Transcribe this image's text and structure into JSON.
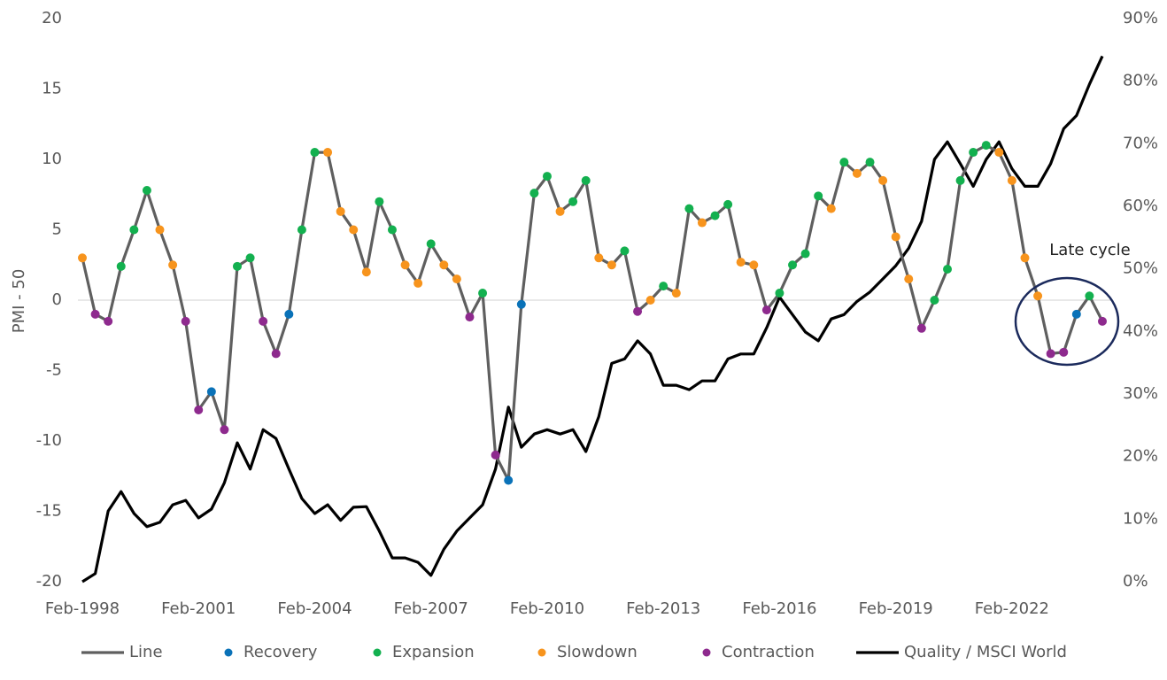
{
  "chart_data": {
    "type": "line",
    "y_label": "PMI - 50",
    "annotation": "Late cycle",
    "x": [
      1998.083,
      1998.417,
      1998.75,
      1999.083,
      1999.417,
      1999.75,
      2000.083,
      2000.417,
      2000.75,
      2001.083,
      2001.417,
      2001.75,
      2002.083,
      2002.417,
      2002.75,
      2003.083,
      2003.417,
      2003.75,
      2004.083,
      2004.417,
      2004.75,
      2005.083,
      2005.417,
      2005.75,
      2006.083,
      2006.417,
      2006.75,
      2007.083,
      2007.417,
      2007.75,
      2008.083,
      2008.417,
      2008.75,
      2009.083,
      2009.417,
      2009.75,
      2010.083,
      2010.417,
      2010.75,
      2011.083,
      2011.417,
      2011.75,
      2012.083,
      2012.417,
      2012.75,
      2013.083,
      2013.417,
      2013.75,
      2014.083,
      2014.417,
      2014.75,
      2015.083,
      2015.417,
      2015.75,
      2016.083,
      2016.417,
      2016.75,
      2017.083,
      2017.417,
      2017.75,
      2018.083,
      2018.417,
      2018.75,
      2019.083,
      2019.417,
      2019.75,
      2020.083,
      2020.417,
      2020.75,
      2021.083,
      2021.417,
      2021.75,
      2022.083,
      2022.417,
      2022.75,
      2023.083,
      2023.417,
      2023.75,
      2024.083,
      2024.417
    ],
    "xlim": [
      1998.083,
      2024.417
    ],
    "xticks": [
      {
        "value": 1998.083,
        "label": "Feb-1998"
      },
      {
        "value": 2001.083,
        "label": "Feb-2001"
      },
      {
        "value": 2004.083,
        "label": "Feb-2004"
      },
      {
        "value": 2007.083,
        "label": "Feb-2007"
      },
      {
        "value": 2010.083,
        "label": "Feb-2010"
      },
      {
        "value": 2013.083,
        "label": "Feb-2013"
      },
      {
        "value": 2016.083,
        "label": "Feb-2016"
      },
      {
        "value": 2019.083,
        "label": "Feb-2019"
      },
      {
        "value": 2022.083,
        "label": "Feb-2022"
      }
    ],
    "ylim": [
      -20,
      20
    ],
    "yticks": [
      -20,
      -15,
      -10,
      -5,
      0,
      5,
      10,
      15,
      20
    ],
    "y2lim": [
      0,
      90
    ],
    "y2ticks": [
      {
        "value": 0,
        "label": "0%"
      },
      {
        "value": 10,
        "label": "10%"
      },
      {
        "value": 20,
        "label": "20%"
      },
      {
        "value": 30,
        "label": "30%"
      },
      {
        "value": 40,
        "label": "40%"
      },
      {
        "value": 50,
        "label": "50%"
      },
      {
        "value": 60,
        "label": "60%"
      },
      {
        "value": 70,
        "label": "70%"
      },
      {
        "value": 80,
        "label": "80%"
      },
      {
        "value": 90,
        "label": "90%"
      }
    ],
    "series": [
      {
        "name": "Line",
        "type": "line",
        "color": "#5f5f5f",
        "values": [
          3,
          -1,
          -1.5,
          2.4,
          5,
          7.8,
          5,
          2.5,
          -1.5,
          -7.8,
          -6.5,
          -9.2,
          2.4,
          3,
          -1.5,
          -3.8,
          -1,
          5,
          10.5,
          10.5,
          6.3,
          5,
          2,
          7,
          5,
          2.5,
          1.2,
          4,
          2.5,
          1.5,
          -1.2,
          0.5,
          -11,
          -12.8,
          -0.3,
          7.6,
          8.8,
          6.3,
          7,
          8.5,
          3,
          2.5,
          3.5,
          -0.8,
          0,
          1,
          0.5,
          6.5,
          5.5,
          6,
          6.8,
          2.7,
          2.5,
          -0.7,
          0.5,
          2.5,
          3.3,
          7.4,
          6.5,
          9.8,
          9,
          9.8,
          8.5,
          4.5,
          1.5,
          -2,
          0,
          2.2,
          8.5,
          10.5,
          11,
          10.5,
          8.5,
          3,
          0.3,
          -3.8,
          -3.7,
          -1,
          0.3,
          -1.5
        ]
      },
      {
        "name": "Recovery",
        "type": "scatter",
        "color": "#0a72b8",
        "x": [
          2001.417,
          2003.417,
          2009.083,
          2009.417,
          2023.75
        ],
        "values": [
          -6.5,
          -1,
          -12.8,
          -0.3,
          -1
        ]
      },
      {
        "name": "Expansion",
        "type": "scatter",
        "color": "#13b04f",
        "x": [
          1999.083,
          1999.417,
          1999.75,
          2002.083,
          2002.417,
          2003.75,
          2004.083,
          2005.75,
          2006.083,
          2007.083,
          2008.417,
          2009.75,
          2010.083,
          2010.75,
          2011.083,
          2012.083,
          2013.083,
          2013.75,
          2014.417,
          2014.75,
          2016.083,
          2016.417,
          2016.75,
          2017.083,
          2017.75,
          2018.417,
          2020.083,
          2020.417,
          2020.75,
          2021.083,
          2021.417,
          2024.083
        ],
        "values": [
          2.4,
          5,
          7.8,
          2.4,
          3,
          5,
          10.5,
          7,
          5,
          4,
          0.5,
          7.6,
          8.8,
          7,
          8.5,
          3.5,
          1,
          6.5,
          6,
          6.8,
          0.5,
          2.5,
          3.3,
          7.4,
          9.8,
          9.8,
          0,
          2.2,
          8.5,
          10.5,
          11,
          0.3
        ]
      },
      {
        "name": "Slowdown",
        "type": "scatter",
        "color": "#f7941d",
        "x": [
          1998.083,
          2000.083,
          2000.417,
          2004.417,
          2004.75,
          2005.083,
          2005.417,
          2006.417,
          2006.75,
          2007.417,
          2007.75,
          2010.417,
          2011.417,
          2011.75,
          2012.75,
          2013.417,
          2014.083,
          2015.083,
          2015.417,
          2017.417,
          2018.083,
          2018.75,
          2019.083,
          2019.417,
          2021.75,
          2022.083,
          2022.417,
          2022.75
        ],
        "values": [
          3,
          5,
          2.5,
          10.5,
          6.3,
          5,
          2,
          2.5,
          1.2,
          2.5,
          1.5,
          6.3,
          3,
          2.5,
          0,
          0.5,
          5.5,
          2.7,
          2.5,
          6.5,
          9,
          8.5,
          4.5,
          1.5,
          10.5,
          8.5,
          3,
          0.3
        ]
      },
      {
        "name": "Contraction",
        "type": "scatter",
        "color": "#8e2a8e",
        "x": [
          1998.417,
          1998.75,
          2000.75,
          2001.083,
          2001.75,
          2002.75,
          2003.083,
          2008.083,
          2008.75,
          2012.417,
          2015.75,
          2019.75,
          2023.083,
          2023.417,
          2024.417
        ],
        "values": [
          -1,
          -1.5,
          -1.5,
          -7.8,
          -9.2,
          -1.5,
          -3.8,
          -1.2,
          -11,
          -0.8,
          -0.7,
          -2,
          -3.8,
          -3.7,
          -1.5
        ]
      },
      {
        "name": "Quality / MSCI World",
        "type": "line",
        "axis": "y2",
        "color": "#000000",
        "values": [
          0,
          1.3,
          11.3,
          14.4,
          10.9,
          8.8,
          9.5,
          12.3,
          13,
          10.2,
          11.6,
          15.8,
          22.2,
          18,
          24.3,
          22.9,
          18,
          13.3,
          10.9,
          12.3,
          9.8,
          11.9,
          12,
          8.1,
          3.8,
          3.8,
          3.1,
          1,
          5.2,
          8.1,
          10.2,
          12.3,
          18,
          27.9,
          21.5,
          23.6,
          24.3,
          23.6,
          24.3,
          20.8,
          26.4,
          34.9,
          35.6,
          38.5,
          36.4,
          31.4,
          31.4,
          30.7,
          32.1,
          32.1,
          35.6,
          36.4,
          36.4,
          40.6,
          45.5,
          42.7,
          39.9,
          38.5,
          42,
          42.7,
          44.8,
          46.3,
          48.4,
          50.5,
          53.3,
          57.6,
          67.5,
          70.3,
          66.8,
          63.2,
          67.5,
          70.3,
          66,
          63.2,
          63.2,
          66.8,
          72.4,
          74.5,
          79.5,
          84
        ]
      }
    ]
  }
}
